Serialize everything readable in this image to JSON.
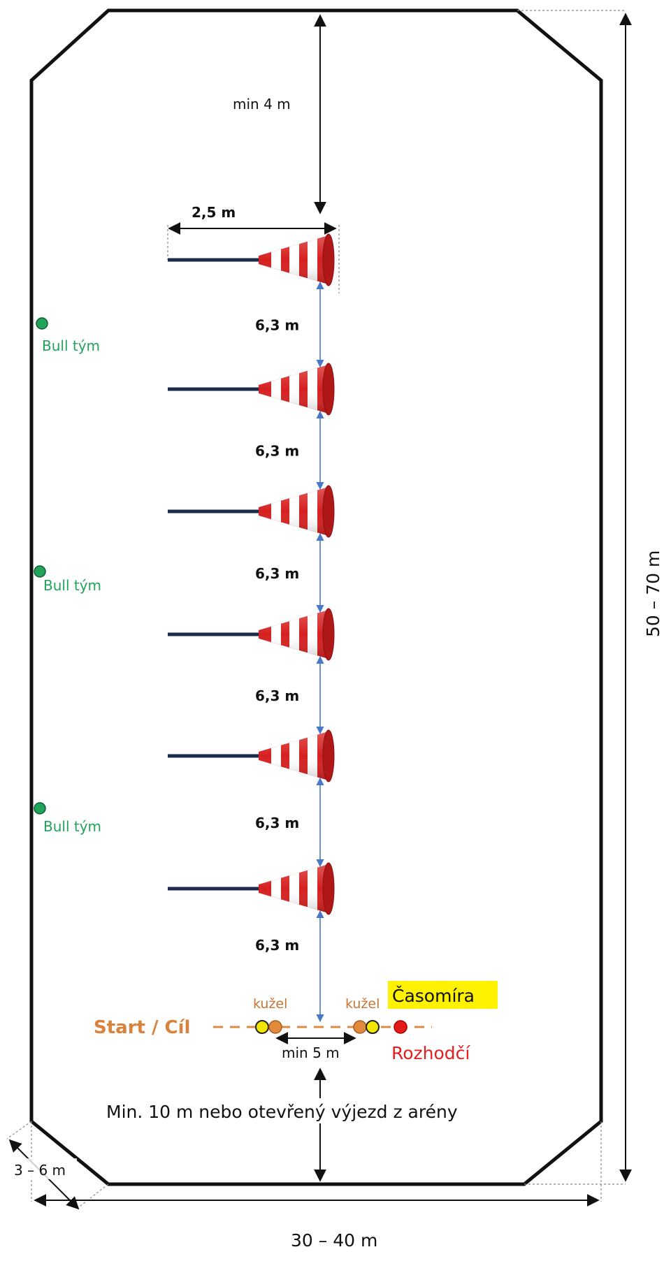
{
  "colors": {
    "arena_border": "#111111",
    "dimension_arrow": "#111111",
    "spacing_arrow": "#4a78c8",
    "team_marker": "#22a35a",
    "cone_marker": "#e08a3c",
    "timer_marker": "#f2e600",
    "referee_marker": "#e31b1b",
    "highlight": "#fff200",
    "start_line": "#e08a3c",
    "pole": "#1c2b4a",
    "cone_red": "#d62020"
  },
  "labels": {
    "top_gap": "min 4 m",
    "pole_length": "2,5 m",
    "spacing": [
      "6,3 m",
      "6,3 m",
      "6,3 m",
      "6,3 m",
      "6,3 m",
      "6,3 m"
    ],
    "team": [
      "Bull tým",
      "Bull tým",
      "Bull tým"
    ],
    "cone_left": "kužel",
    "cone_right": "kužel",
    "timer": "Časomíra",
    "start_finish": "Start / Cíl",
    "min_start_width": "min 5 m",
    "referee": "Rozhodčí",
    "bottom_note": "Min. 10 m nebo otevřený výjezd z arény",
    "length": "50 – 70 m",
    "corner": "3 – 6 m",
    "width": "30 – 40 m"
  },
  "obstacles": {
    "count": 6,
    "type": "pole-with-cone"
  }
}
